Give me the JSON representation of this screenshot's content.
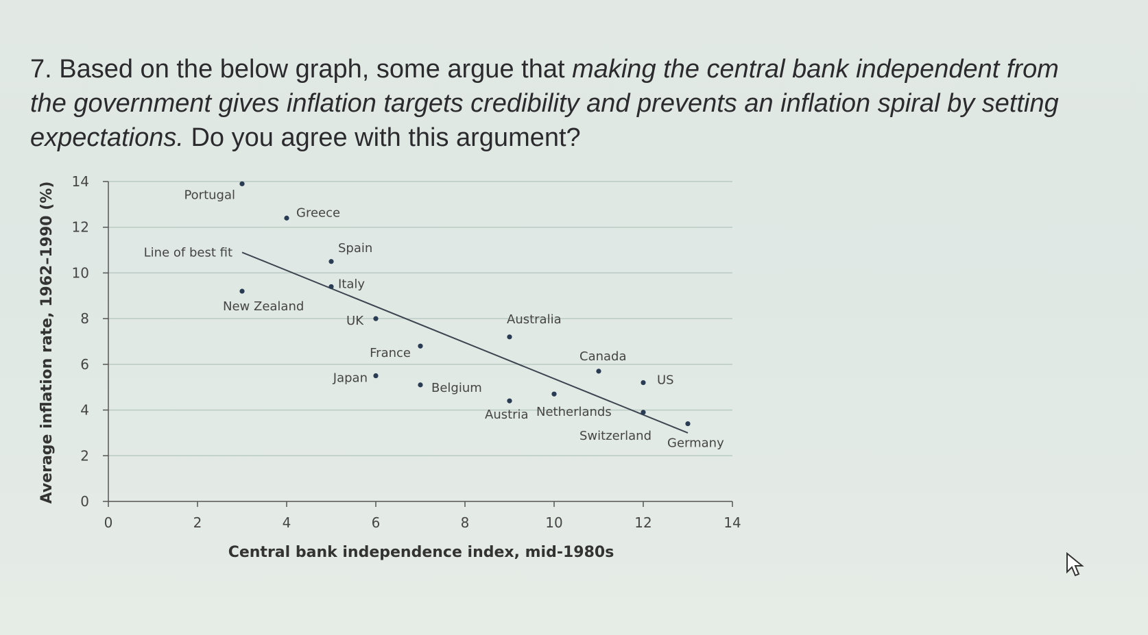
{
  "question": {
    "prefix": "7. Based on the below graph, some argue that ",
    "emphasis": "making the central bank independent from the government gives inflation targets credibility and prevents an inflation spiral by setting expectations.",
    "suffix": " Do you agree with this argument?"
  },
  "chart_data": {
    "type": "scatter",
    "xlabel": "Central bank independence index, mid-1980s",
    "ylabel": "Average inflation rate, 1962–1990 (%)",
    "xlim": [
      0,
      14
    ],
    "ylim": [
      0,
      14
    ],
    "x_ticks": [
      0,
      2,
      4,
      6,
      8,
      10,
      12,
      14
    ],
    "y_ticks": [
      0,
      2,
      4,
      6,
      8,
      10,
      12,
      14
    ],
    "grid": "horizontal",
    "points": [
      {
        "label": "Portugal",
        "x": 3.0,
        "y": 13.9
      },
      {
        "label": "Greece",
        "x": 4.0,
        "y": 12.4
      },
      {
        "label": "Spain",
        "x": 5.0,
        "y": 10.5
      },
      {
        "label": "Italy",
        "x": 5.0,
        "y": 9.4
      },
      {
        "label": "New Zealand",
        "x": 3.0,
        "y": 9.2
      },
      {
        "label": "UK",
        "x": 6.0,
        "y": 8.0
      },
      {
        "label": "France",
        "x": 7.0,
        "y": 6.8
      },
      {
        "label": "Australia",
        "x": 9.0,
        "y": 7.2
      },
      {
        "label": "Japan",
        "x": 6.0,
        "y": 5.5
      },
      {
        "label": "Belgium",
        "x": 7.0,
        "y": 5.1
      },
      {
        "label": "Canada",
        "x": 11.0,
        "y": 5.7
      },
      {
        "label": "US",
        "x": 12.0,
        "y": 5.2
      },
      {
        "label": "Austria",
        "x": 9.0,
        "y": 4.4
      },
      {
        "label": "Netherlands",
        "x": 10.0,
        "y": 4.7
      },
      {
        "label": "Switzerland",
        "x": 12.0,
        "y": 3.9
      },
      {
        "label": "Germany",
        "x": 13.0,
        "y": 3.4
      }
    ],
    "best_fit": {
      "label": "Line of best fit",
      "from": [
        3.0,
        10.9
      ],
      "to": [
        13.0,
        3.0
      ]
    }
  }
}
